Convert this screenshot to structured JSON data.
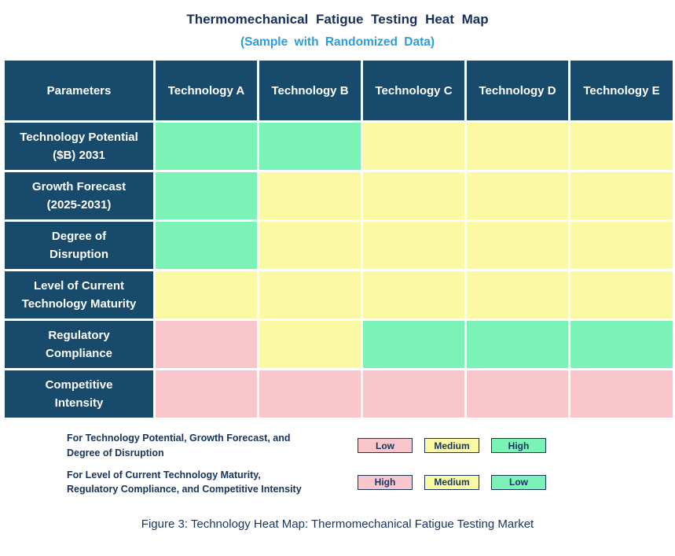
{
  "title": "Thermomechanical Fatigue Testing Heat Map",
  "subtitle": "(Sample with Randomized Data)",
  "caption": "Figure 3: Technology Heat Map: Thermomechanical Fatigue Testing Market",
  "colors": {
    "header_bg": "#174A6B",
    "green": "#7CF3B6",
    "yellow": "#FBF9A4",
    "pink": "#F9C6CC",
    "navy_text": "#17335E",
    "subtitle_blue": "#2D9CDB"
  },
  "table": {
    "header": [
      "Parameters",
      "Technology A",
      "Technology B",
      "Technology C",
      "Technology D",
      "Technology E"
    ],
    "rows": [
      {
        "label": "Technology Potential\n($B) 2031",
        "cells": [
          "green",
          "green",
          "yellow",
          "yellow",
          "yellow"
        ]
      },
      {
        "label": "Growth Forecast\n(2025-2031)",
        "cells": [
          "green",
          "yellow",
          "yellow",
          "yellow",
          "yellow"
        ]
      },
      {
        "label": "Degree of\nDisruption",
        "cells": [
          "green",
          "yellow",
          "yellow",
          "yellow",
          "yellow"
        ]
      },
      {
        "label": "Level of Current\nTechnology Maturity",
        "cells": [
          "yellow",
          "yellow",
          "yellow",
          "yellow",
          "yellow"
        ]
      },
      {
        "label": "Regulatory\nCompliance",
        "cells": [
          "pink",
          "yellow",
          "green",
          "green",
          "green"
        ]
      },
      {
        "label": "Competitive\nIntensity",
        "cells": [
          "pink",
          "pink",
          "pink",
          "pink",
          "pink"
        ]
      }
    ]
  },
  "legend": [
    {
      "text": "For Technology Potential, Growth Forecast, and\nDegree of Disruption",
      "items": [
        {
          "label": "Low",
          "color": "pink"
        },
        {
          "label": "Medium",
          "color": "yellow"
        },
        {
          "label": "High",
          "color": "green"
        }
      ]
    },
    {
      "text": "For Level of Current Technology Maturity,\nRegulatory Compliance, and Competitive Intensity",
      "items": [
        {
          "label": "High",
          "color": "pink"
        },
        {
          "label": "Medium",
          "color": "yellow"
        },
        {
          "label": "Low",
          "color": "green"
        }
      ]
    }
  ],
  "chart_data": {
    "type": "heatmap",
    "title": "Thermomechanical Fatigue Testing Heat Map",
    "subtitle": "(Sample with Randomized Data)",
    "columns": [
      "Technology A",
      "Technology B",
      "Technology C",
      "Technology D",
      "Technology E"
    ],
    "rows": [
      "Technology Potential ($B) 2031",
      "Growth Forecast (2025-2031)",
      "Degree of Disruption",
      "Level of Current Technology Maturity",
      "Regulatory Compliance",
      "Competitive Intensity"
    ],
    "cell_colors": [
      [
        "green",
        "green",
        "yellow",
        "yellow",
        "yellow"
      ],
      [
        "green",
        "yellow",
        "yellow",
        "yellow",
        "yellow"
      ],
      [
        "green",
        "yellow",
        "yellow",
        "yellow",
        "yellow"
      ],
      [
        "yellow",
        "yellow",
        "yellow",
        "yellow",
        "yellow"
      ],
      [
        "pink",
        "yellow",
        "green",
        "green",
        "green"
      ],
      [
        "pink",
        "pink",
        "pink",
        "pink",
        "pink"
      ]
    ],
    "levels": [
      [
        "High",
        "High",
        "Medium",
        "Medium",
        "Medium"
      ],
      [
        "High",
        "Medium",
        "Medium",
        "Medium",
        "Medium"
      ],
      [
        "High",
        "Medium",
        "Medium",
        "Medium",
        "Medium"
      ],
      [
        "Medium",
        "Medium",
        "Medium",
        "Medium",
        "Medium"
      ],
      [
        "High",
        "Medium",
        "Low",
        "Low",
        "Low"
      ],
      [
        "High",
        "High",
        "High",
        "High",
        "High"
      ]
    ],
    "legend": [
      {
        "applies_to": "Technology Potential, Growth Forecast, Degree of Disruption",
        "mapping": {
          "pink": "Low",
          "yellow": "Medium",
          "green": "High"
        }
      },
      {
        "applies_to": "Level of Current Technology Maturity, Regulatory Compliance, Competitive Intensity",
        "mapping": {
          "pink": "High",
          "yellow": "Medium",
          "green": "Low"
        }
      }
    ]
  }
}
